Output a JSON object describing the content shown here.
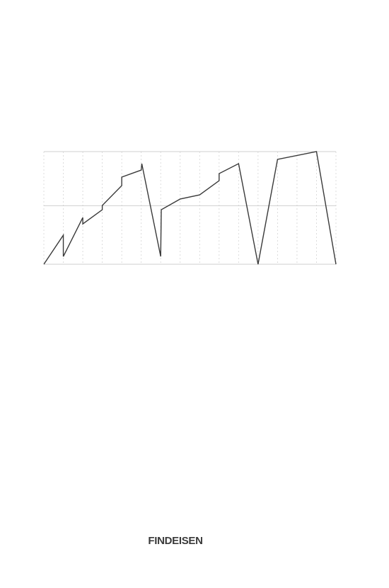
{
  "chart_data": {
    "type": "line",
    "x": [
      0,
      1,
      1,
      2,
      2,
      3,
      3,
      4,
      4,
      5,
      5.03,
      6,
      6.03,
      7,
      8,
      9,
      9,
      10,
      11,
      12,
      14,
      15
    ],
    "series": [
      {
        "color": "#3a3a3a",
        "values": [
          0,
          25.8,
          6.9,
          41.5,
          35.8,
          48.4,
          52.2,
          69.8,
          77.4,
          83.6,
          89.3,
          6.9,
          48.4,
          57.9,
          61.6,
          74.2,
          80.5,
          89.3,
          0,
          93.1,
          100,
          0
        ]
      }
    ],
    "xlim": [
      0,
      15
    ],
    "xticks": [
      0,
      1,
      2,
      3,
      4,
      5,
      6,
      7,
      8,
      9,
      10,
      11,
      12,
      13,
      14,
      15
    ],
    "ylim": [
      0,
      100
    ],
    "yticks": [
      0,
      52,
      100
    ],
    "grid": true
  },
  "footer": {
    "author": "FINDEISEN"
  }
}
